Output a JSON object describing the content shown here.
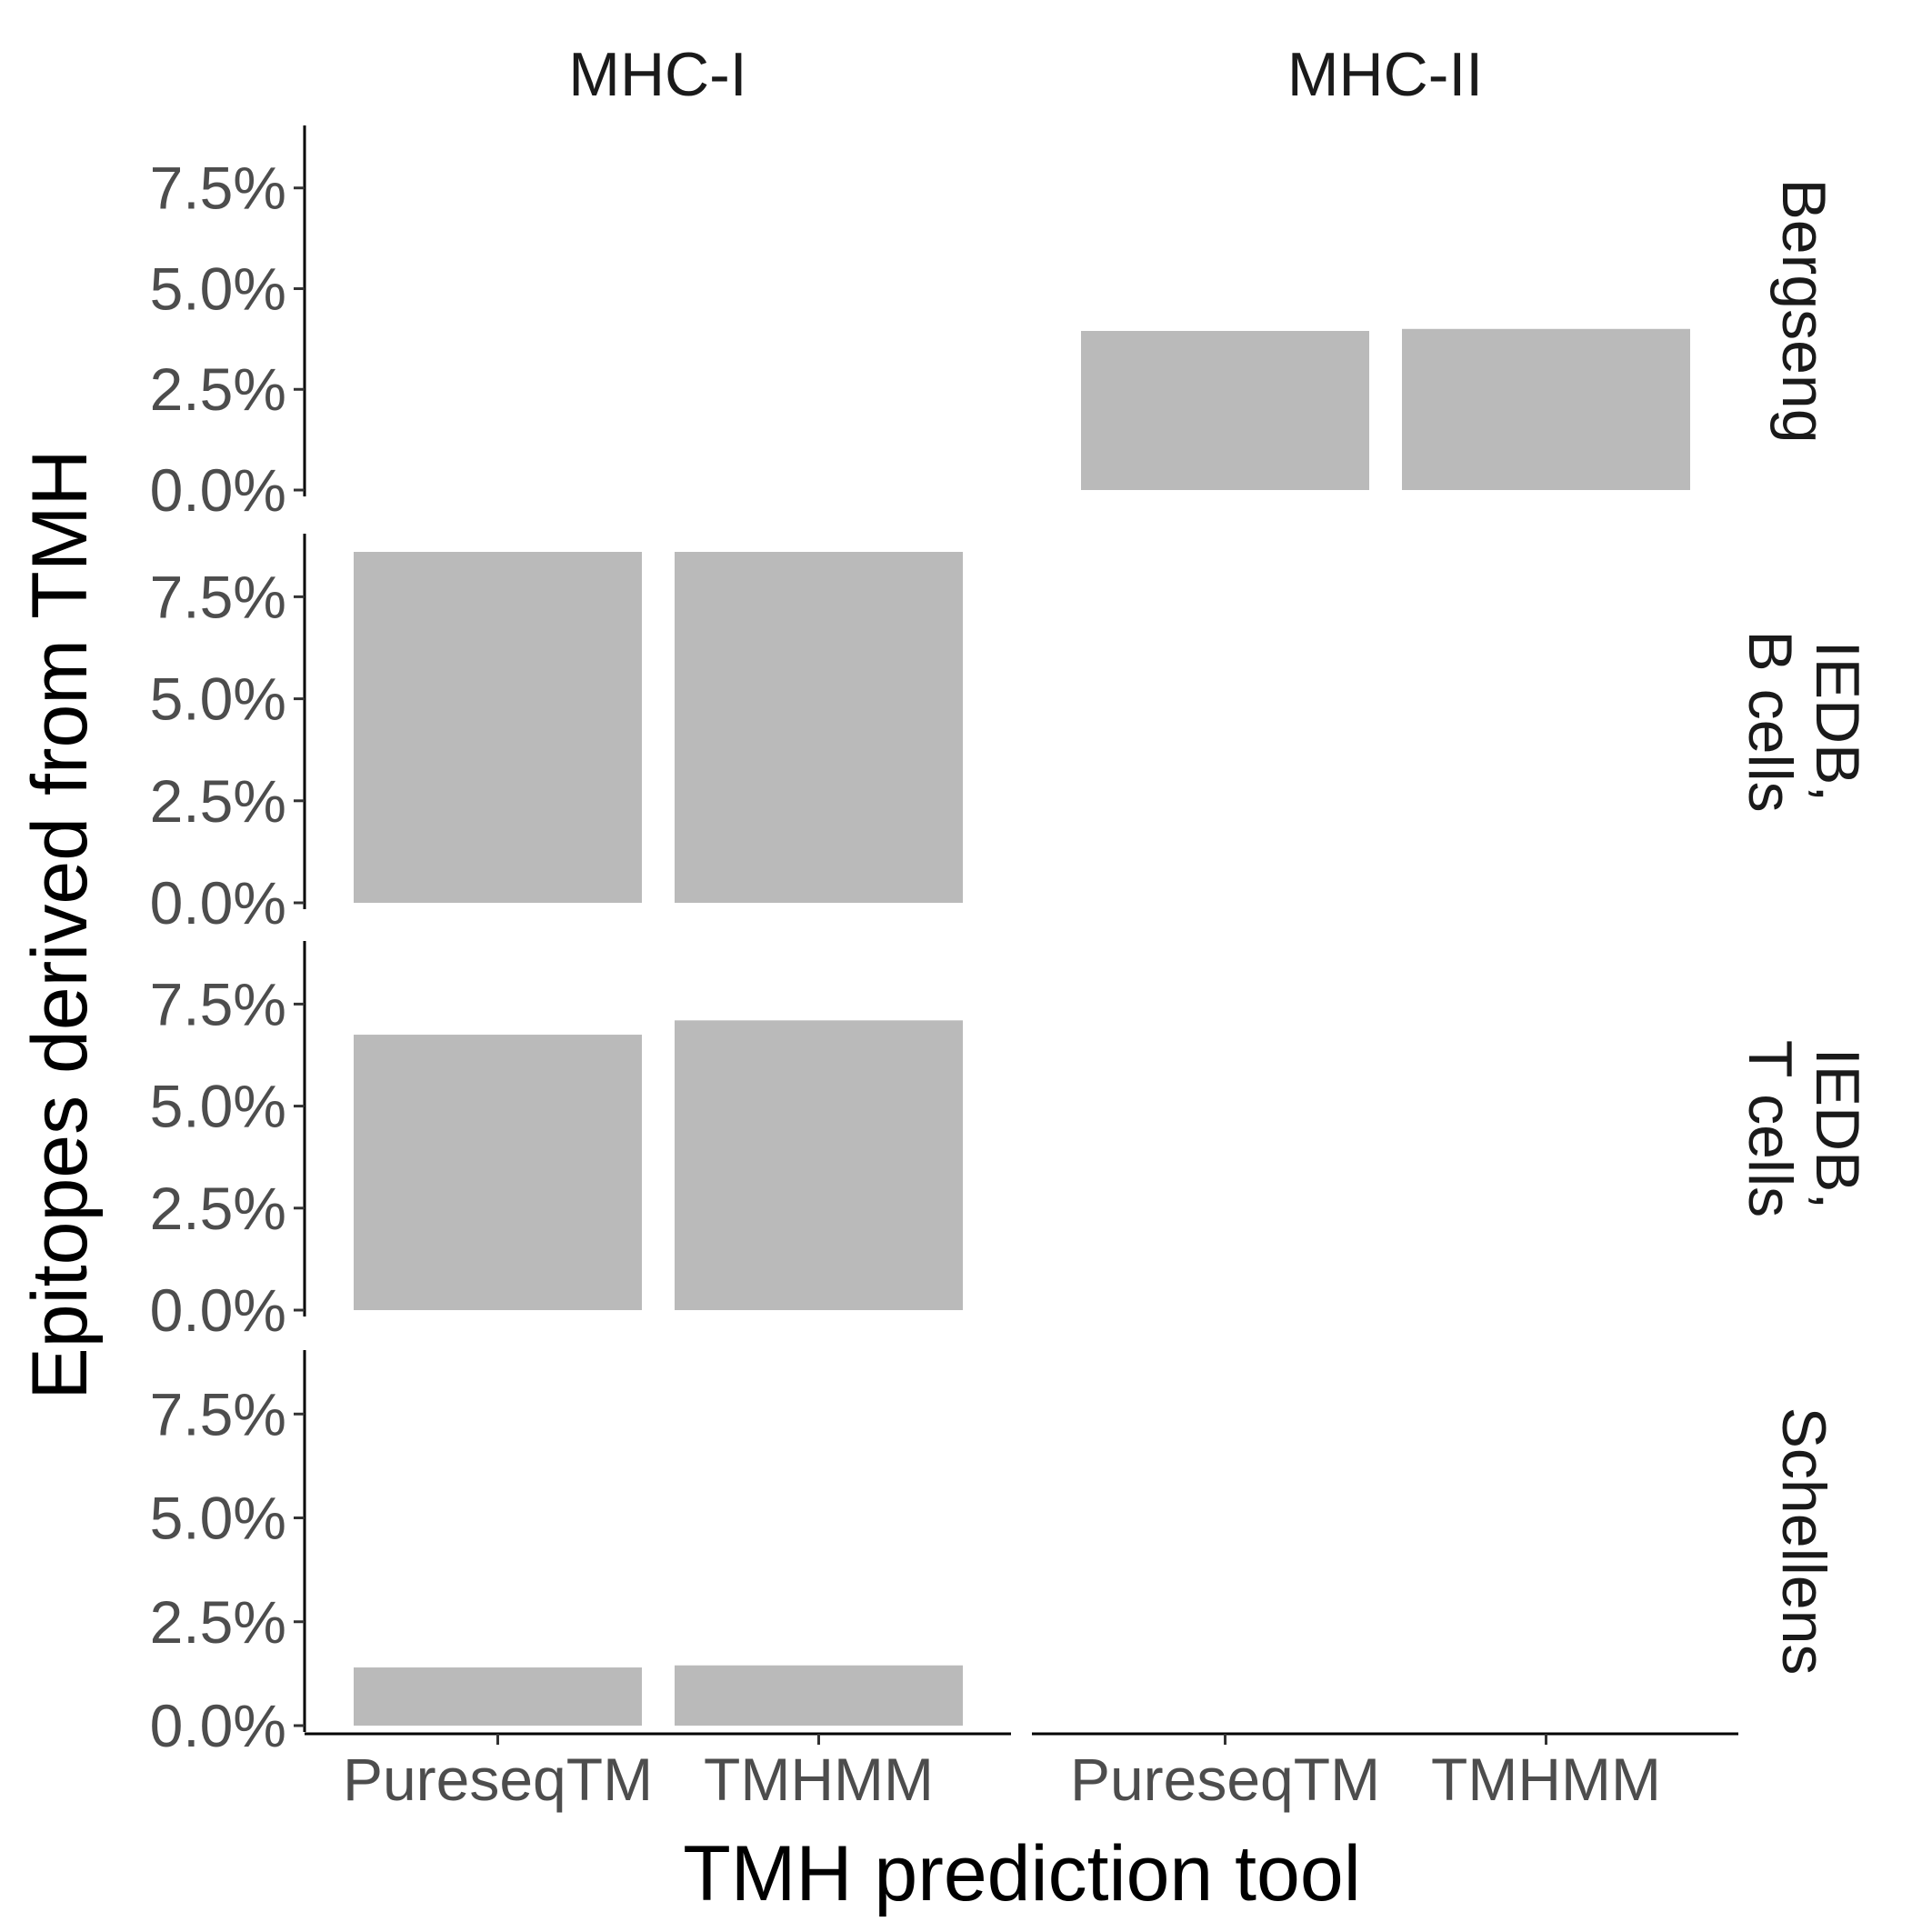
{
  "chart_data": {
    "type": "bar",
    "title": "",
    "xlabel": "TMH prediction tool",
    "ylabel": "Epitopes derived from TMH",
    "categories": [
      "PureseqTM",
      "TMHMM"
    ],
    "columns": [
      "MHC-I",
      "MHC-II"
    ],
    "rows": [
      "Bergseng",
      "IEDB,\nB cells",
      "IEDB,\nT cells",
      "Schellens"
    ],
    "ylim": [
      0,
      8.6
    ],
    "yticks": [
      0.0,
      2.5,
      5.0,
      7.5
    ],
    "ytick_labels": [
      "0.0%",
      "2.5%",
      "5.0%",
      "7.5%"
    ],
    "unit": "%",
    "bar_color": "#bababa",
    "grid": false,
    "legend": "none",
    "panels": [
      {
        "column": "MHC-I",
        "row": "Bergseng",
        "values": []
      },
      {
        "column": "MHC-II",
        "row": "Bergseng",
        "values": [
          3.95,
          4.0
        ]
      },
      {
        "column": "MHC-I",
        "row": "IEDB,\nB cells",
        "values": [
          8.6,
          8.6
        ]
      },
      {
        "column": "MHC-II",
        "row": "IEDB,\nB cells",
        "values": []
      },
      {
        "column": "MHC-I",
        "row": "IEDB,\nT cells",
        "values": [
          6.75,
          7.1
        ]
      },
      {
        "column": "MHC-II",
        "row": "IEDB,\nT cells",
        "values": []
      },
      {
        "column": "MHC-I",
        "row": "Schellens",
        "values": [
          1.4,
          1.45
        ]
      },
      {
        "column": "MHC-II",
        "row": "Schellens",
        "values": []
      }
    ]
  }
}
